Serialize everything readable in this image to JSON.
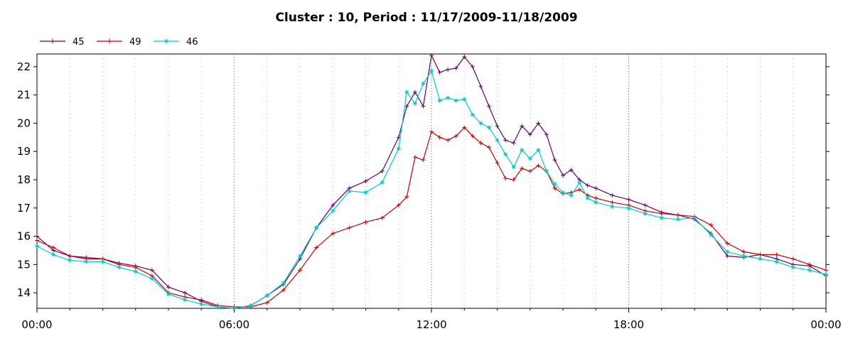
{
  "chart_data": {
    "type": "line",
    "title": "Cluster : 10, Period : 11/17/2009-11/18/2009",
    "xlabel": "",
    "ylabel": "",
    "x_tick_labels": [
      "00:00",
      "06:00",
      "12:00",
      "18:00",
      "00:00"
    ],
    "y_tick_labels": [
      "14",
      "15",
      "16",
      "17",
      "18",
      "19",
      "20",
      "21",
      "22"
    ],
    "xlim": [
      0,
      24
    ],
    "ylim": [
      13.45,
      22.45
    ],
    "grid": true,
    "legend_position": "top-left",
    "x": [
      0,
      0.5,
      1,
      1.5,
      2,
      2.5,
      3,
      3.5,
      4,
      4.5,
      5,
      5.5,
      6,
      6.5,
      7,
      7.5,
      8,
      8.5,
      9,
      9.5,
      10,
      10.5,
      11,
      11.25,
      11.5,
      11.75,
      12,
      12.25,
      12.5,
      12.75,
      13,
      13.25,
      13.5,
      13.75,
      14,
      14.25,
      14.5,
      14.75,
      15,
      15.25,
      15.5,
      15.75,
      16,
      16.25,
      16.5,
      16.75,
      17,
      17.5,
      18,
      18.5,
      19,
      19.5,
      20,
      20.5,
      21,
      21.5,
      22,
      22.5,
      23,
      23.5,
      24
    ],
    "series": [
      {
        "name": "45",
        "color": "#660066",
        "marker": "plus",
        "values": [
          16.0,
          15.5,
          15.3,
          15.25,
          15.2,
          15.05,
          14.95,
          14.8,
          14.2,
          14.0,
          13.7,
          13.5,
          13.45,
          13.55,
          13.9,
          14.3,
          15.2,
          16.3,
          17.1,
          17.7,
          17.95,
          18.3,
          19.5,
          20.6,
          21.1,
          20.6,
          22.4,
          21.8,
          21.9,
          21.95,
          22.35,
          22.0,
          21.3,
          20.6,
          19.9,
          19.4,
          19.3,
          19.9,
          19.6,
          20.0,
          19.6,
          18.7,
          18.15,
          18.35,
          18.0,
          17.8,
          17.7,
          17.45,
          17.3,
          17.1,
          16.85,
          16.75,
          16.6,
          16.1,
          15.3,
          15.25,
          15.35,
          15.2,
          15.0,
          14.95,
          14.6
        ]
      },
      {
        "name": "49",
        "color": "#cc0000",
        "marker": "plus",
        "values": [
          15.85,
          15.6,
          15.3,
          15.2,
          15.2,
          15.0,
          14.9,
          14.6,
          14.0,
          13.85,
          13.75,
          13.55,
          13.5,
          13.5,
          13.65,
          14.1,
          14.8,
          15.6,
          16.1,
          16.3,
          16.5,
          16.65,
          17.1,
          17.4,
          18.8,
          18.7,
          19.7,
          19.5,
          19.4,
          19.55,
          19.85,
          19.55,
          19.3,
          19.15,
          18.6,
          18.05,
          18.0,
          18.4,
          18.3,
          18.5,
          18.3,
          17.7,
          17.5,
          17.55,
          17.65,
          17.45,
          17.35,
          17.2,
          17.1,
          16.9,
          16.8,
          16.75,
          16.7,
          16.4,
          15.75,
          15.45,
          15.35,
          15.35,
          15.2,
          15.0,
          14.8
        ]
      },
      {
        "name": "46",
        "color": "#00cccc",
        "marker": "star",
        "values": [
          15.65,
          15.35,
          15.15,
          15.1,
          15.1,
          14.9,
          14.75,
          14.5,
          13.95,
          13.75,
          13.6,
          13.5,
          13.45,
          13.55,
          13.9,
          14.35,
          15.3,
          16.3,
          16.9,
          17.6,
          17.55,
          17.9,
          19.1,
          21.1,
          20.7,
          21.4,
          21.85,
          20.8,
          20.9,
          20.8,
          20.85,
          20.3,
          20.0,
          19.85,
          19.4,
          18.9,
          18.45,
          19.05,
          18.75,
          19.05,
          18.3,
          17.85,
          17.55,
          17.45,
          17.9,
          17.35,
          17.2,
          17.05,
          17.0,
          16.8,
          16.65,
          16.6,
          16.65,
          16.05,
          15.45,
          15.3,
          15.2,
          15.1,
          14.9,
          14.8,
          14.65
        ]
      }
    ]
  }
}
